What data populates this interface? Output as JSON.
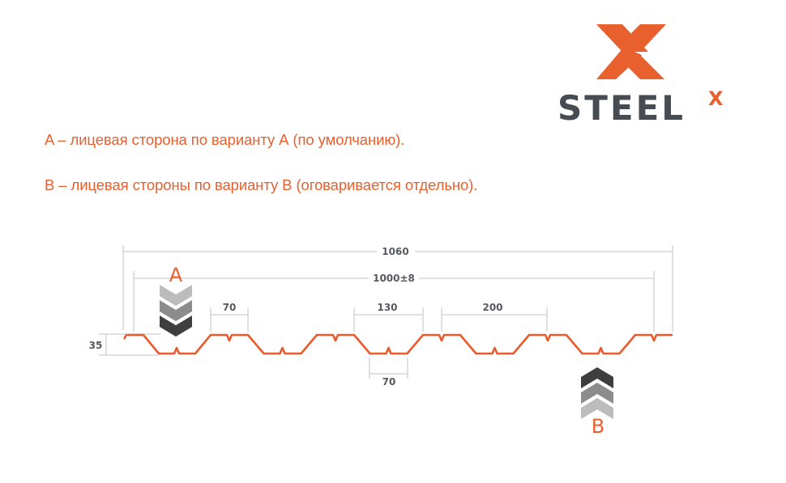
{
  "legend_lines": [
    "A – лицевая сторона по варианту А (по умолчанию).",
    "B – лицевая стороны по варианту B (оговаривается отдельно)."
  ],
  "logo": {
    "text": "STEEL",
    "superscript": "X"
  },
  "dimensions": {
    "total_width": "1060",
    "working_width": "1000±8",
    "top_flat": "70",
    "bottom_flat": "70",
    "rib_opening": "130",
    "pitch": "200",
    "height": "35"
  },
  "sides": {
    "a": "A",
    "b": "B"
  },
  "colors": {
    "accent": "#e8602e",
    "profile": "#ea5a2a",
    "logo_text": "#474c52",
    "dim_lines": "#cfcfcf"
  }
}
